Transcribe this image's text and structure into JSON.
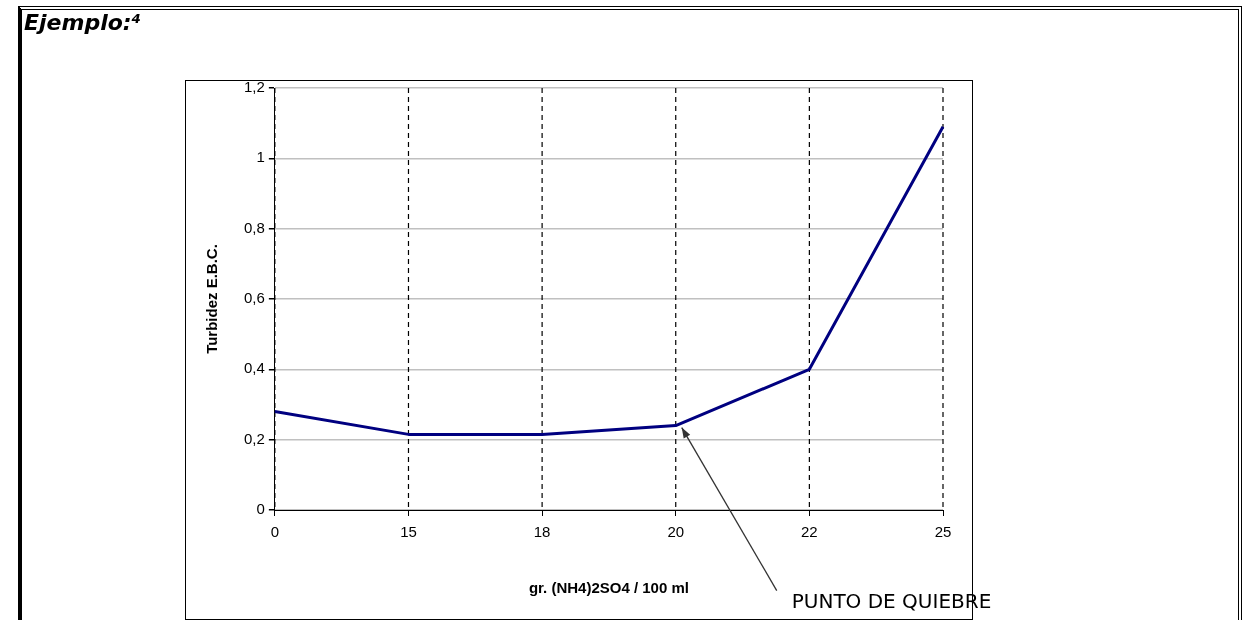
{
  "chart_data": {
    "type": "line",
    "title": "Ejemplo:⁴",
    "xlabel": "gr. (NH4)2SO4 / 100 ml",
    "ylabel": "Turbidez E.B.C.",
    "categories": [
      "0",
      "15",
      "18",
      "20",
      "22",
      "25"
    ],
    "series": [
      {
        "color": "#000080",
        "values": [
          0.28,
          0.215,
          0.215,
          0.24,
          0.4,
          1.09
        ]
      }
    ],
    "ylim": [
      0,
      1.2
    ],
    "yticks": [
      {
        "value": 0,
        "label": "0"
      },
      {
        "value": 0.2,
        "label": "0,2"
      },
      {
        "value": 0.4,
        "label": "0,4"
      },
      {
        "value": 0.6,
        "label": "0,6"
      },
      {
        "value": 0.8,
        "label": "0,8"
      },
      {
        "value": 1,
        "label": "1"
      },
      {
        "value": 1.2,
        "label": "1,2"
      }
    ],
    "grid": true,
    "legend": false,
    "marker": "none",
    "line_style": "solid",
    "annotations": [
      {
        "text": "PUNTO DE QUIEBRE",
        "x": "20",
        "y": 0.24
      }
    ]
  }
}
